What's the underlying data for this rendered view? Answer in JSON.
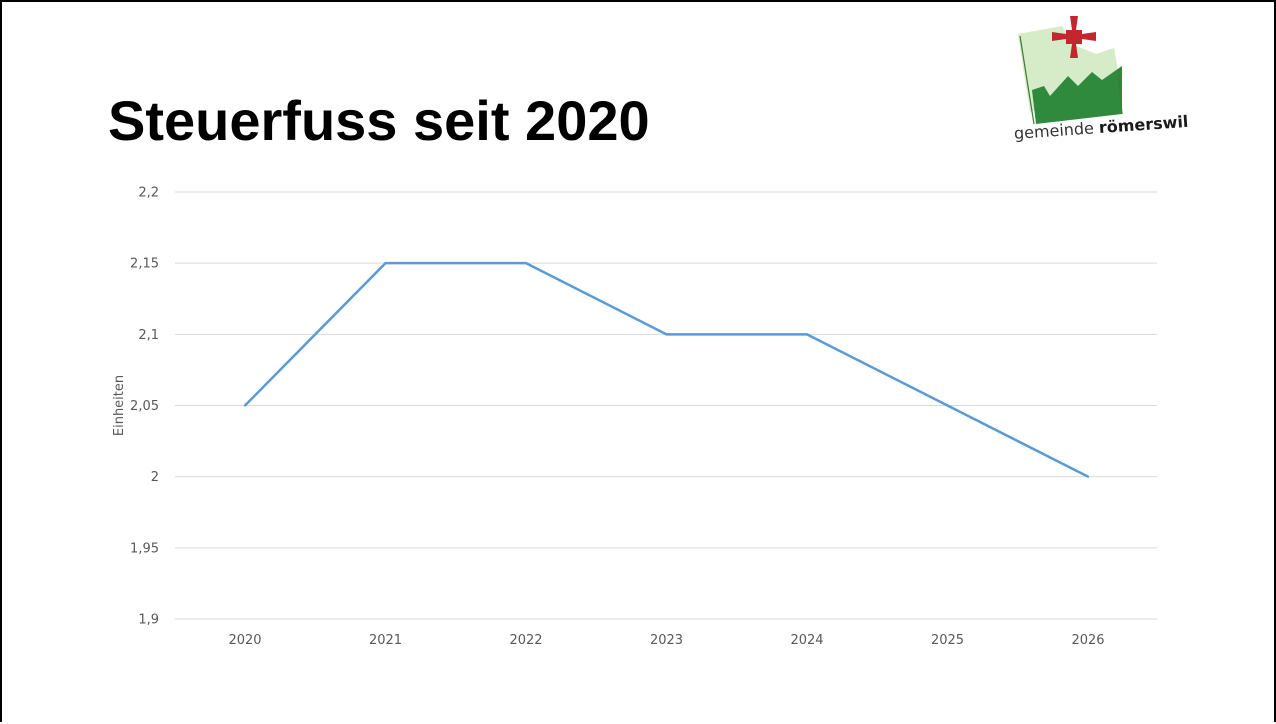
{
  "slide": {
    "title": "Steuerfuss seit 2020"
  },
  "logo": {
    "icon": "cross-icon",
    "caption_prefix": "gemeinde",
    "caption_name": "römerswil",
    "colors": {
      "cross": "#c4262e",
      "light_green": "#d6ecc9",
      "dark_green": "#2f8a3e"
    }
  },
  "chart_data": {
    "type": "line",
    "categories": [
      "2020",
      "2021",
      "2022",
      "2023",
      "2024",
      "2025",
      "2026"
    ],
    "series": [
      {
        "values": [
          2.05,
          2.15,
          2.15,
          2.1,
          2.1,
          2.05,
          2.0
        ],
        "color": "#5b9bd5"
      }
    ],
    "ylabel": "Einheiten",
    "ylim": [
      1.9,
      2.2
    ],
    "yticks": [
      1.9,
      1.95,
      2.0,
      2.05,
      2.1,
      2.15,
      2.2
    ],
    "ytick_labels": [
      "1,9",
      "1,95",
      "2",
      "2,05",
      "2,1",
      "2,15",
      "2,2"
    ],
    "grid": true,
    "legend": "none"
  }
}
